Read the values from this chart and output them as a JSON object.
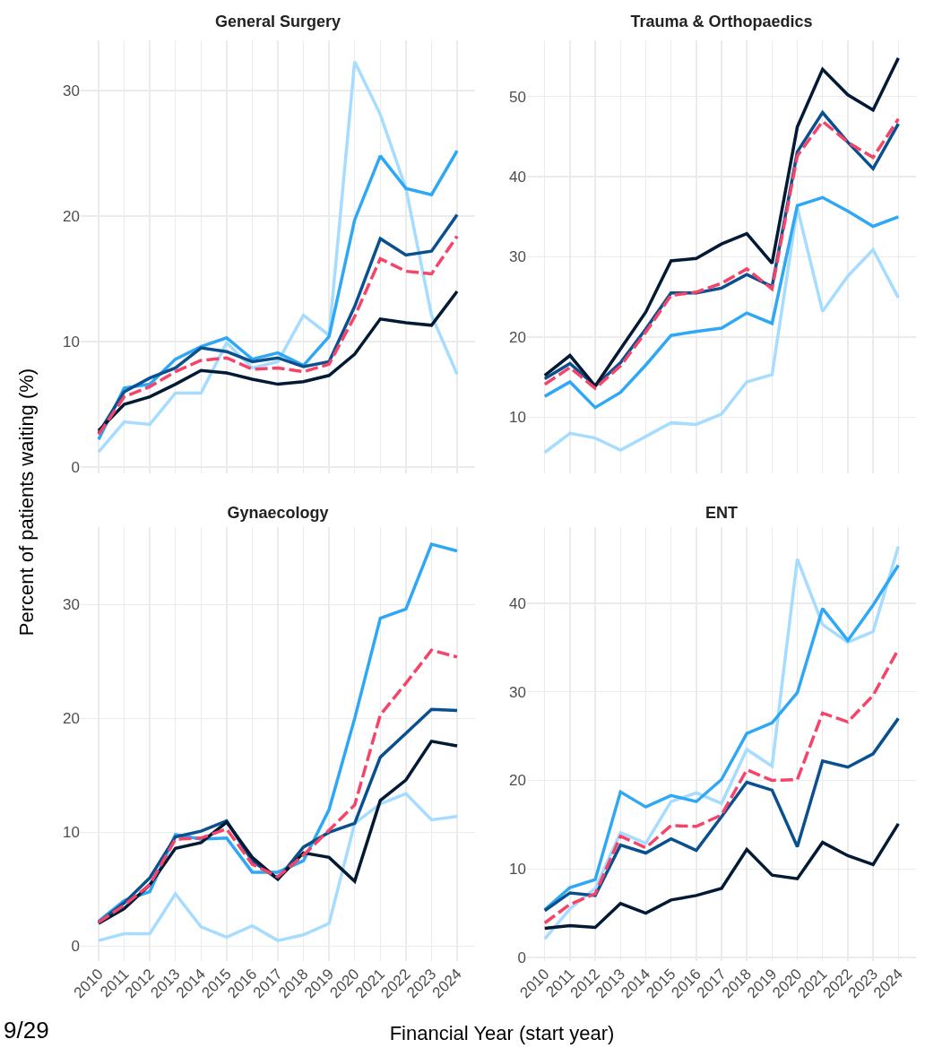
{
  "chart_data": [
    {
      "type": "line",
      "title": "General Surgery",
      "ylabel": "Percent of patients waiting (%)",
      "x": [
        2010,
        2011,
        2012,
        2013,
        2014,
        2015,
        2016,
        2017,
        2018,
        2019,
        2020,
        2021,
        2022,
        2023,
        2024
      ],
      "xlim": [
        2009.3,
        2024.7
      ],
      "xticks": [
        2010,
        2011,
        2012,
        2013,
        2014,
        2015,
        2016,
        2017,
        2018,
        2019,
        2020,
        2021,
        2022,
        2023,
        2024
      ],
      "ylim": [
        -0.5,
        34
      ],
      "yticks": [
        0,
        10,
        20,
        30
      ],
      "grid": true,
      "tick_labels": "y",
      "series": [
        {
          "color": "#a6dcff",
          "values": [
            1.2,
            3.6,
            3.4,
            5.9,
            5.9,
            9.9,
            7.9,
            8.4,
            12.1,
            10.5,
            32.3,
            28.1,
            22.2,
            12.1,
            7.4
          ]
        },
        {
          "color": "#2ea8f5",
          "values": [
            2.2,
            6.3,
            6.6,
            8.6,
            9.6,
            10.3,
            8.6,
            9.1,
            8.1,
            10.4,
            19.7,
            24.8,
            22.2,
            21.7,
            25.2
          ]
        },
        {
          "color": "#0a508f",
          "values": [
            2.7,
            6.0,
            7.1,
            7.9,
            9.5,
            9.2,
            8.4,
            8.7,
            8.0,
            8.4,
            12.8,
            18.2,
            16.9,
            17.2,
            20.1
          ]
        },
        {
          "color": "#021a33",
          "values": [
            2.9,
            5.0,
            5.6,
            6.6,
            7.7,
            7.5,
            7.0,
            6.6,
            6.8,
            7.3,
            9.0,
            11.8,
            11.5,
            11.3,
            14.0
          ]
        },
        {
          "color": "#f5446a",
          "line_style": "dashed",
          "values": [
            2.6,
            5.6,
            6.4,
            7.6,
            8.5,
            8.7,
            7.8,
            7.9,
            7.6,
            8.2,
            12.0,
            16.6,
            15.6,
            15.4,
            18.4
          ]
        }
      ]
    },
    {
      "type": "line",
      "title": "Trauma & Orthopaedics",
      "x": [
        2010,
        2011,
        2012,
        2013,
        2014,
        2015,
        2016,
        2017,
        2018,
        2019,
        2020,
        2021,
        2022,
        2023,
        2024
      ],
      "xlim": [
        2009.3,
        2024.7
      ],
      "xticks": [
        2010,
        2011,
        2012,
        2013,
        2014,
        2015,
        2016,
        2017,
        2018,
        2019,
        2020,
        2021,
        2022,
        2023,
        2024
      ],
      "ylim": [
        3,
        57
      ],
      "yticks": [
        10,
        20,
        30,
        40,
        50
      ],
      "grid": true,
      "tick_labels": "y",
      "series": [
        {
          "color": "#a6dcff",
          "values": [
            5.6,
            8.0,
            7.4,
            5.9,
            7.6,
            9.3,
            9.1,
            10.4,
            14.4,
            15.3,
            36.1,
            23.2,
            27.6,
            30.9,
            24.9
          ]
        },
        {
          "color": "#2ea8f5",
          "values": [
            12.6,
            14.4,
            11.2,
            13.1,
            16.5,
            20.2,
            20.7,
            21.1,
            23.0,
            21.7,
            36.4,
            37.4,
            35.7,
            33.8,
            35.0
          ]
        },
        {
          "color": "#0a508f",
          "values": [
            14.8,
            16.7,
            13.9,
            16.8,
            21.0,
            25.5,
            25.5,
            26.1,
            27.8,
            26.3,
            43.1,
            48.0,
            44.3,
            41.0,
            46.6
          ]
        },
        {
          "color": "#021a33",
          "values": [
            15.2,
            17.7,
            13.9,
            18.5,
            23.1,
            29.5,
            29.8,
            31.6,
            32.9,
            29.2,
            46.2,
            53.4,
            50.2,
            48.3,
            54.8
          ]
        },
        {
          "color": "#f5446a",
          "line_style": "dashed",
          "values": [
            14.1,
            16.2,
            13.6,
            16.4,
            20.6,
            25.2,
            25.6,
            26.7,
            28.5,
            26.0,
            42.6,
            46.9,
            44.3,
            42.4,
            47.2
          ]
        }
      ]
    },
    {
      "type": "line",
      "title": "Gynaecology",
      "xlabel": "Financial Year (start year)",
      "annotations": [
        "9/29"
      ],
      "x": [
        2010,
        2011,
        2012,
        2013,
        2014,
        2015,
        2016,
        2017,
        2018,
        2019,
        2020,
        2021,
        2022,
        2023,
        2024
      ],
      "xlim": [
        2009.3,
        2024.7
      ],
      "xticks": [
        2010,
        2011,
        2012,
        2013,
        2014,
        2015,
        2016,
        2017,
        2018,
        2019,
        2020,
        2021,
        2022,
        2023,
        2024
      ],
      "ylim": [
        -1.3,
        36.8
      ],
      "yticks": [
        0,
        10,
        20,
        30
      ],
      "grid": true,
      "series": [
        {
          "color": "#a6dcff",
          "values": [
            0.5,
            1.1,
            1.1,
            4.6,
            1.7,
            0.8,
            1.8,
            0.5,
            1.0,
            2.0,
            10.8,
            12.5,
            13.4,
            11.1,
            11.4
          ]
        },
        {
          "color": "#2ea8f5",
          "values": [
            2.2,
            4.0,
            4.8,
            9.8,
            9.4,
            9.5,
            6.5,
            6.5,
            7.5,
            12.0,
            20.0,
            28.8,
            29.6,
            35.3,
            34.7
          ]
        },
        {
          "color": "#0a508f",
          "values": [
            2.1,
            3.8,
            6.0,
            9.6,
            10.1,
            11.0,
            7.5,
            5.9,
            8.7,
            10.0,
            10.8,
            16.6,
            18.7,
            20.8,
            20.7
          ]
        },
        {
          "color": "#021a33",
          "values": [
            2.0,
            3.3,
            5.4,
            8.6,
            9.1,
            10.9,
            7.8,
            5.9,
            8.2,
            7.8,
            5.7,
            12.8,
            14.6,
            18.0,
            17.6
          ]
        },
        {
          "color": "#f5446a",
          "line_style": "dashed",
          "values": [
            2.1,
            3.6,
            5.4,
            9.4,
            9.5,
            10.3,
            7.2,
            6.1,
            8.0,
            10.2,
            12.4,
            20.3,
            23.1,
            26.0,
            25.4
          ]
        }
      ]
    },
    {
      "type": "line",
      "title": "ENT",
      "x": [
        2010,
        2011,
        2012,
        2013,
        2014,
        2015,
        2016,
        2017,
        2018,
        2019,
        2020,
        2021,
        2022,
        2023,
        2024
      ],
      "xlim": [
        2009.3,
        2024.7
      ],
      "xticks": [
        2010,
        2011,
        2012,
        2013,
        2014,
        2015,
        2016,
        2017,
        2018,
        2019,
        2020,
        2021,
        2022,
        2023,
        2024
      ],
      "ylim": [
        -0.4,
        48.6
      ],
      "yticks": [
        0,
        10,
        20,
        30,
        40
      ],
      "grid": true,
      "series": [
        {
          "color": "#a6dcff",
          "values": [
            2.1,
            5.5,
            7.8,
            14.1,
            12.9,
            17.6,
            18.6,
            17.4,
            23.5,
            21.6,
            45.0,
            37.6,
            35.6,
            36.8,
            46.4
          ]
        },
        {
          "color": "#2ea8f5",
          "values": [
            5.4,
            7.9,
            8.8,
            18.7,
            17.0,
            18.3,
            17.6,
            20.1,
            25.3,
            26.5,
            29.9,
            39.4,
            35.8,
            39.8,
            44.3
          ]
        },
        {
          "color": "#0a508f",
          "values": [
            5.3,
            7.3,
            7.0,
            12.7,
            11.8,
            13.4,
            12.1,
            15.9,
            19.8,
            18.9,
            12.5,
            22.2,
            21.5,
            23.0,
            27.0
          ]
        },
        {
          "color": "#021a33",
          "values": [
            3.3,
            3.6,
            3.4,
            6.1,
            5.0,
            6.5,
            7.0,
            7.8,
            12.2,
            9.3,
            8.9,
            13.0,
            11.5,
            10.5,
            15.1
          ]
        },
        {
          "color": "#f5446a",
          "line_style": "dashed",
          "values": [
            3.9,
            6.0,
            7.2,
            13.7,
            12.4,
            14.9,
            14.8,
            16.1,
            21.2,
            20.0,
            20.1,
            27.6,
            26.6,
            29.6,
            34.8
          ]
        }
      ]
    }
  ]
}
